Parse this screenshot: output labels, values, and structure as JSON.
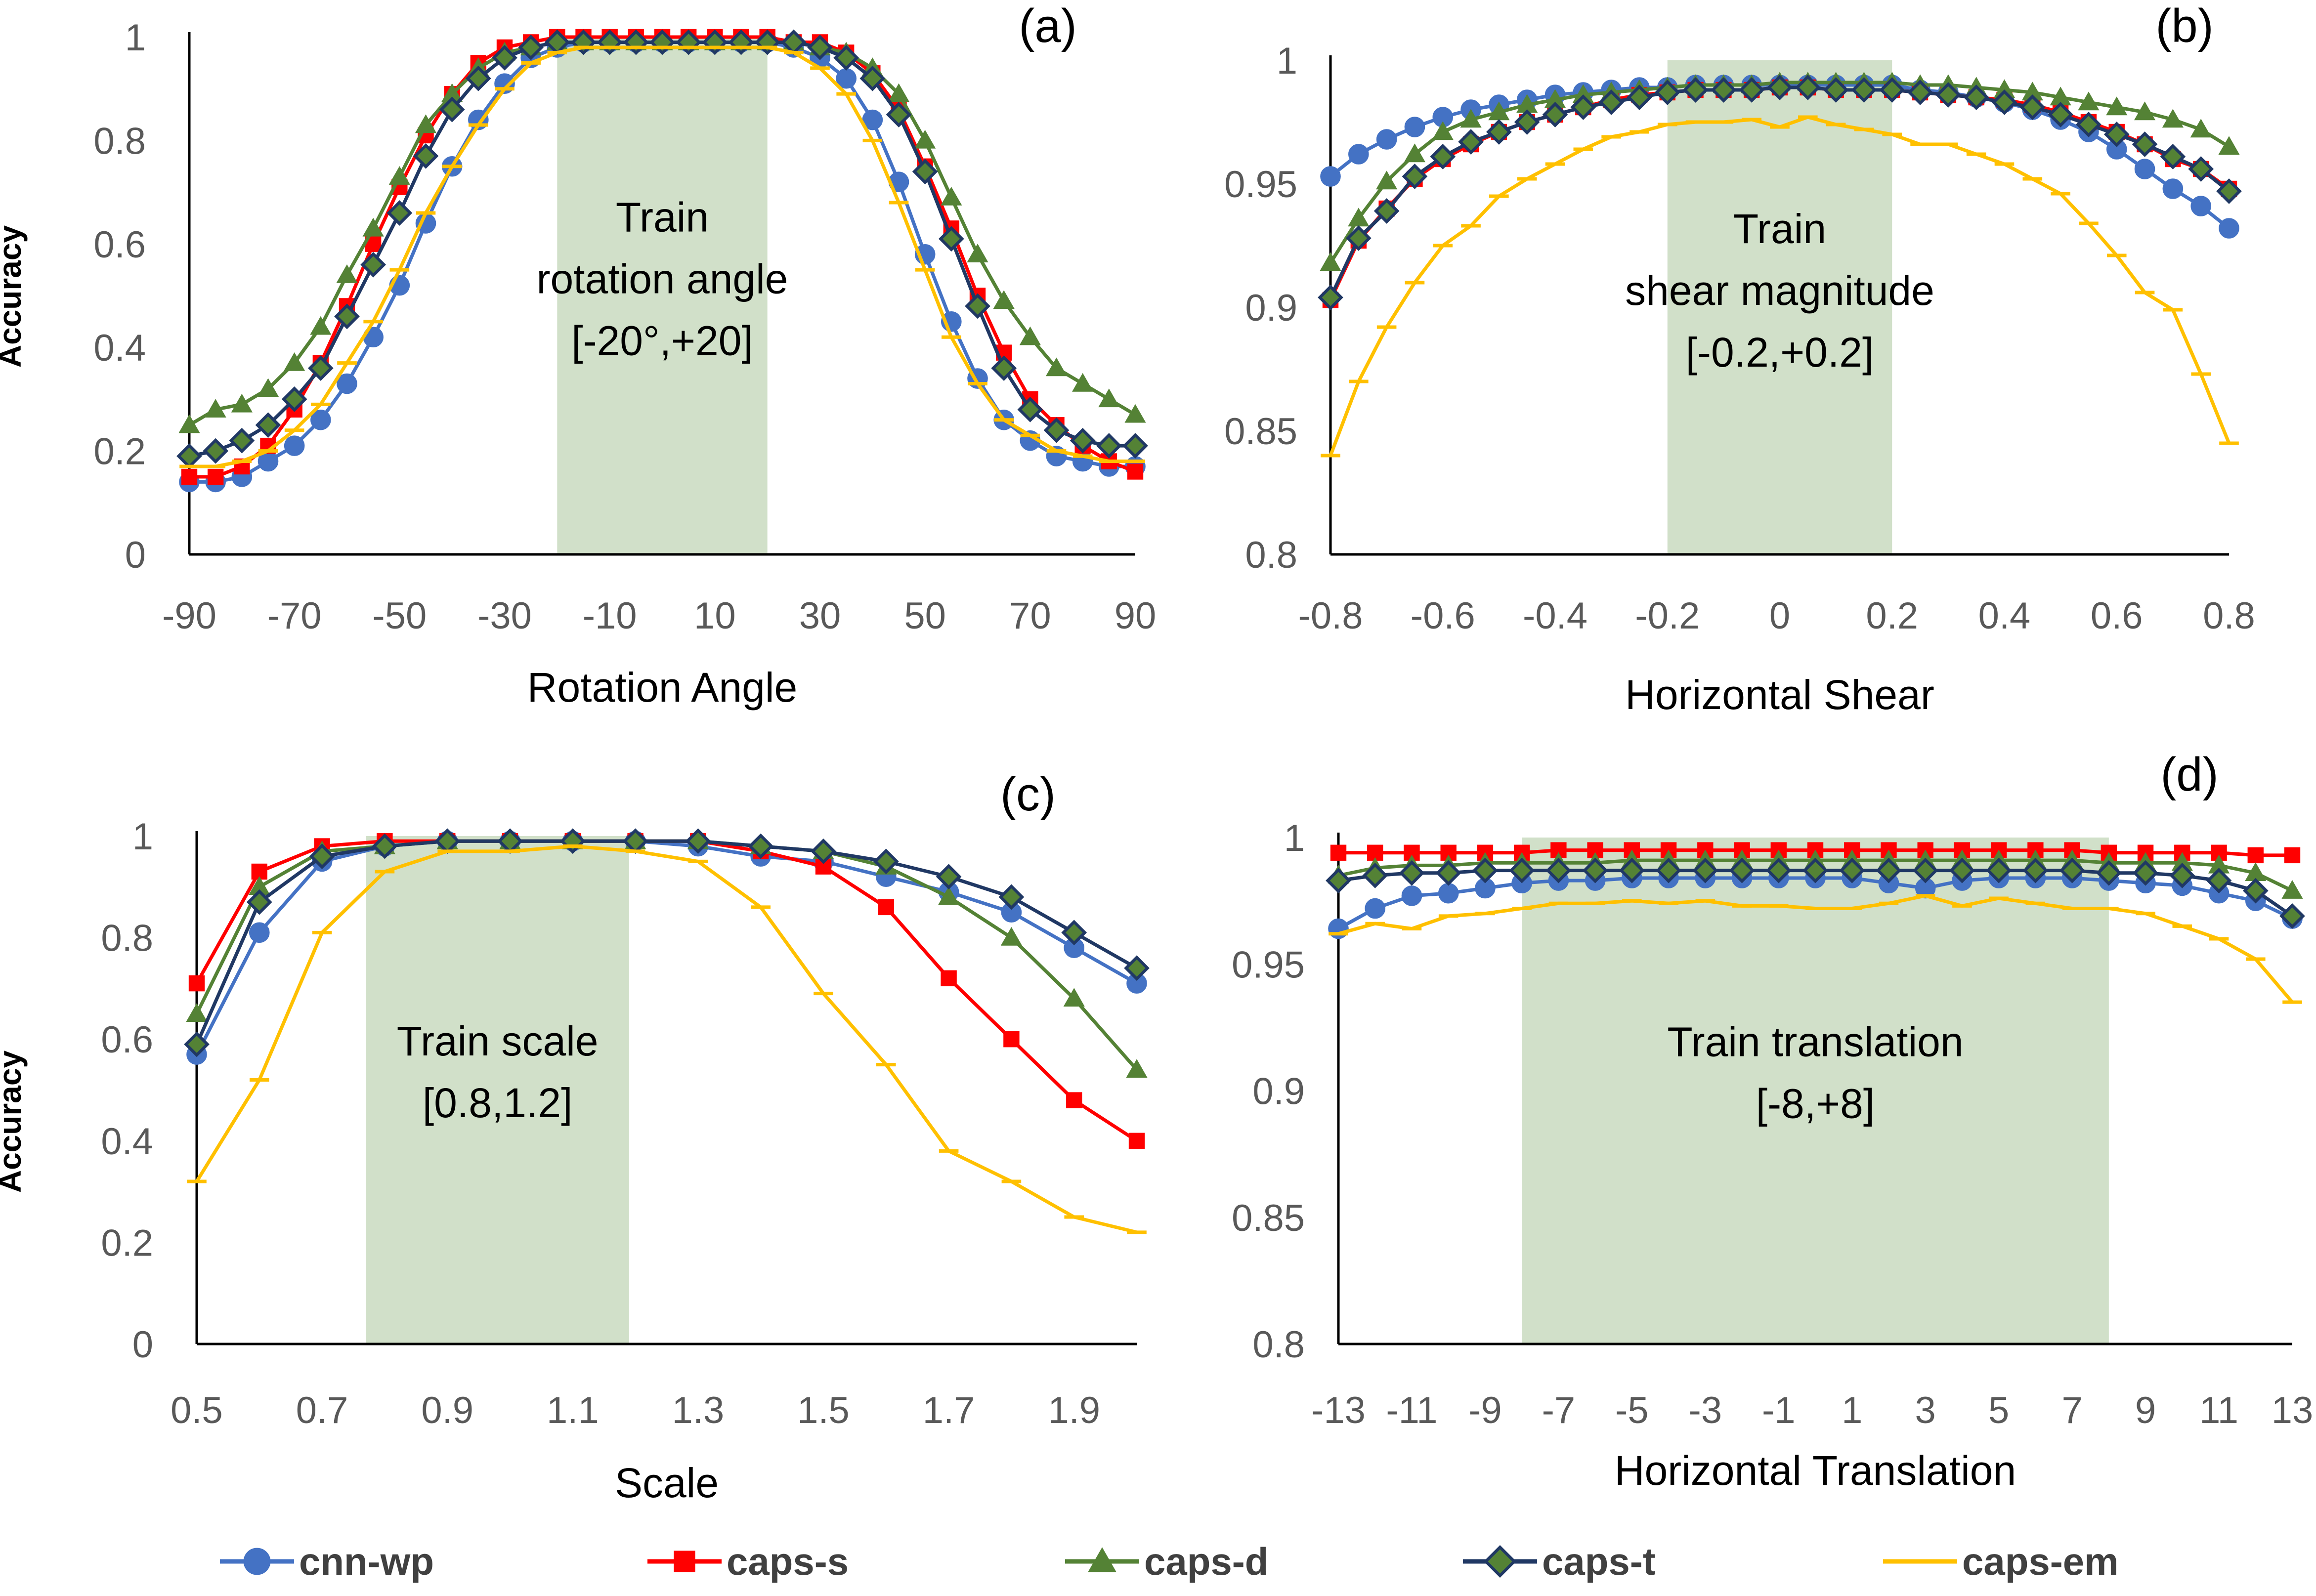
{
  "legend": [
    {
      "name": "cnn-wp",
      "color": "#4472C4",
      "marker": "circle"
    },
    {
      "name": "caps-s",
      "color": "#FF0000",
      "marker": "square"
    },
    {
      "name": "caps-d",
      "color": "#548235",
      "marker": "triangle"
    },
    {
      "name": "caps-t",
      "color": "#203864",
      "marker": "diamond"
    },
    {
      "name": "caps-em",
      "color": "#FFC000",
      "marker": "dash"
    }
  ],
  "chart_data": [
    {
      "panel": "(a)",
      "type": "line",
      "xlabel": "Rotation Angle",
      "ylabel": "Accuracy",
      "xlim": [
        -90,
        90
      ],
      "ylim": [
        0,
        1
      ],
      "xticks": [
        -90,
        -70,
        -50,
        -30,
        -10,
        10,
        30,
        50,
        70,
        90
      ],
      "xtick_labels": [
        "-90",
        "-70",
        "-50",
        "-30",
        "-10",
        "10",
        "30",
        "50",
        "70",
        "90"
      ],
      "yticks": [
        0,
        0.2,
        0.4,
        0.6,
        0.8,
        1
      ],
      "ytick_labels": [
        "0",
        "0.2",
        "0.4",
        "0.6",
        "0.8",
        "1"
      ],
      "train_region": [
        -20,
        20
      ],
      "train_label": [
        "Train",
        "rotation angle",
        "[-20°,+20]"
      ],
      "x": [
        -90,
        -85,
        -80,
        -75,
        -70,
        -65,
        -60,
        -55,
        -50,
        -45,
        -40,
        -35,
        -30,
        -25,
        -20,
        -15,
        -10,
        -5,
        0,
        5,
        10,
        15,
        20,
        25,
        30,
        35,
        40,
        45,
        50,
        55,
        60,
        65,
        70,
        75,
        80,
        85,
        90
      ],
      "series": [
        {
          "name": "cnn-wp",
          "values": [
            0.14,
            0.14,
            0.15,
            0.18,
            0.21,
            0.26,
            0.33,
            0.42,
            0.52,
            0.64,
            0.75,
            0.84,
            0.91,
            0.96,
            0.98,
            0.99,
            0.99,
            0.99,
            0.99,
            0.99,
            0.99,
            0.99,
            0.99,
            0.98,
            0.96,
            0.92,
            0.84,
            0.72,
            0.58,
            0.45,
            0.34,
            0.26,
            0.22,
            0.19,
            0.18,
            0.17,
            0.17
          ]
        },
        {
          "name": "caps-s",
          "values": [
            0.15,
            0.15,
            0.17,
            0.21,
            0.28,
            0.37,
            0.48,
            0.6,
            0.71,
            0.81,
            0.89,
            0.95,
            0.98,
            0.99,
            1.0,
            1.0,
            1.0,
            1.0,
            1.0,
            1.0,
            1.0,
            1.0,
            1.0,
            0.99,
            0.99,
            0.97,
            0.93,
            0.86,
            0.75,
            0.63,
            0.5,
            0.39,
            0.3,
            0.25,
            0.21,
            0.18,
            0.16
          ]
        },
        {
          "name": "caps-d",
          "values": [
            0.25,
            0.28,
            0.29,
            0.32,
            0.37,
            0.44,
            0.54,
            0.63,
            0.73,
            0.83,
            0.89,
            0.94,
            0.97,
            0.98,
            0.99,
            0.99,
            0.99,
            0.99,
            0.99,
            0.99,
            0.99,
            0.99,
            0.99,
            0.99,
            0.98,
            0.97,
            0.94,
            0.89,
            0.8,
            0.69,
            0.58,
            0.49,
            0.42,
            0.36,
            0.33,
            0.3,
            0.27
          ]
        },
        {
          "name": "caps-t",
          "values": [
            0.19,
            0.2,
            0.22,
            0.25,
            0.3,
            0.36,
            0.46,
            0.56,
            0.66,
            0.77,
            0.86,
            0.92,
            0.96,
            0.98,
            0.99,
            0.99,
            0.99,
            0.99,
            0.99,
            0.99,
            0.99,
            0.99,
            0.99,
            0.99,
            0.98,
            0.96,
            0.92,
            0.85,
            0.74,
            0.61,
            0.48,
            0.36,
            0.28,
            0.24,
            0.22,
            0.21,
            0.21
          ]
        },
        {
          "name": "caps-em",
          "values": [
            0.17,
            0.17,
            0.18,
            0.2,
            0.24,
            0.29,
            0.37,
            0.45,
            0.55,
            0.66,
            0.75,
            0.83,
            0.9,
            0.95,
            0.97,
            0.98,
            0.98,
            0.98,
            0.98,
            0.98,
            0.98,
            0.98,
            0.98,
            0.97,
            0.94,
            0.89,
            0.8,
            0.68,
            0.55,
            0.42,
            0.33,
            0.26,
            0.23,
            0.2,
            0.19,
            0.18,
            0.18
          ]
        }
      ]
    },
    {
      "panel": "(b)",
      "type": "line",
      "xlabel": "Horizontal Shear",
      "ylabel": "",
      "xlim": [
        -0.8,
        0.8
      ],
      "ylim": [
        0.8,
        1
      ],
      "xticks": [
        -0.8,
        -0.6,
        -0.4,
        -0.2,
        0,
        0.2,
        0.4,
        0.6,
        0.8
      ],
      "xtick_labels": [
        "-0.8",
        "-0.6",
        "-0.4",
        "-0.2",
        "0",
        "0.2",
        "0.4",
        "0.6",
        "0.8"
      ],
      "yticks": [
        0.8,
        0.85,
        0.9,
        0.95,
        1
      ],
      "ytick_labels": [
        "0.8",
        "0.85",
        "0.9",
        "0.95",
        "1"
      ],
      "train_region": [
        -0.2,
        0.2
      ],
      "train_label": [
        "Train",
        "shear magnitude",
        "[-0.2,+0.2]"
      ],
      "x": [
        -0.8,
        -0.75,
        -0.7,
        -0.65,
        -0.6,
        -0.55,
        -0.5,
        -0.45,
        -0.4,
        -0.35,
        -0.3,
        -0.25,
        -0.2,
        -0.15,
        -0.1,
        -0.05,
        0,
        0.05,
        0.1,
        0.15,
        0.2,
        0.25,
        0.3,
        0.35,
        0.4,
        0.45,
        0.5,
        0.55,
        0.6,
        0.65,
        0.7,
        0.75,
        0.8
      ],
      "series": [
        {
          "name": "cnn-wp",
          "values": [
            0.953,
            0.962,
            0.968,
            0.973,
            0.977,
            0.98,
            0.982,
            0.984,
            0.986,
            0.987,
            0.988,
            0.989,
            0.989,
            0.99,
            0.99,
            0.99,
            0.99,
            0.99,
            0.99,
            0.99,
            0.99,
            0.988,
            0.987,
            0.985,
            0.983,
            0.98,
            0.976,
            0.971,
            0.964,
            0.956,
            0.948,
            0.941,
            0.932
          ]
        },
        {
          "name": "caps-s",
          "values": [
            0.903,
            0.927,
            0.94,
            0.952,
            0.96,
            0.966,
            0.971,
            0.975,
            0.978,
            0.981,
            0.984,
            0.986,
            0.987,
            0.988,
            0.988,
            0.988,
            0.989,
            0.989,
            0.988,
            0.988,
            0.988,
            0.987,
            0.986,
            0.985,
            0.984,
            0.982,
            0.979,
            0.975,
            0.971,
            0.966,
            0.96,
            0.956,
            0.948
          ]
        },
        {
          "name": "caps-d",
          "values": [
            0.918,
            0.936,
            0.951,
            0.962,
            0.971,
            0.976,
            0.979,
            0.982,
            0.984,
            0.986,
            0.987,
            0.988,
            0.989,
            0.99,
            0.99,
            0.99,
            0.991,
            0.991,
            0.991,
            0.991,
            0.991,
            0.99,
            0.99,
            0.989,
            0.988,
            0.987,
            0.985,
            0.983,
            0.981,
            0.979,
            0.976,
            0.972,
            0.965
          ]
        },
        {
          "name": "caps-t",
          "values": [
            0.904,
            0.928,
            0.939,
            0.953,
            0.961,
            0.967,
            0.971,
            0.975,
            0.978,
            0.981,
            0.983,
            0.985,
            0.987,
            0.988,
            0.988,
            0.988,
            0.989,
            0.989,
            0.988,
            0.988,
            0.988,
            0.987,
            0.986,
            0.985,
            0.983,
            0.981,
            0.978,
            0.974,
            0.97,
            0.966,
            0.961,
            0.956,
            0.947
          ]
        },
        {
          "name": "caps-em",
          "values": [
            0.84,
            0.87,
            0.892,
            0.91,
            0.925,
            0.933,
            0.945,
            0.952,
            0.958,
            0.964,
            0.969,
            0.971,
            0.974,
            0.975,
            0.975,
            0.976,
            0.973,
            0.977,
            0.974,
            0.972,
            0.97,
            0.966,
            0.966,
            0.962,
            0.958,
            0.952,
            0.946,
            0.934,
            0.921,
            0.906,
            0.899,
            0.873,
            0.845
          ]
        }
      ]
    },
    {
      "panel": "(c)",
      "type": "line",
      "xlabel": "Scale",
      "ylabel": "Accuracy",
      "xlim": [
        0.5,
        2.0
      ],
      "ylim": [
        0,
        1
      ],
      "xticks": [
        0.5,
        0.7,
        0.9,
        1.1,
        1.3,
        1.5,
        1.7,
        1.9
      ],
      "xtick_labels": [
        "0.5",
        "0.7",
        "0.9",
        "1.1",
        "1.3",
        "1.5",
        "1.7",
        "1.9"
      ],
      "yticks": [
        0,
        0.2,
        0.4,
        0.6,
        0.8,
        1
      ],
      "ytick_labels": [
        "0",
        "0.2",
        "0.4",
        "0.6",
        "0.8",
        "1"
      ],
      "train_region": [
        0.77,
        1.19
      ],
      "train_label": [
        "Train scale",
        "[0.8,1.2]"
      ],
      "x": [
        0.5,
        0.6,
        0.7,
        0.8,
        0.9,
        1.0,
        1.1,
        1.2,
        1.3,
        1.4,
        1.5,
        1.6,
        1.7,
        1.8,
        1.9,
        2.0
      ],
      "series": [
        {
          "name": "cnn-wp",
          "values": [
            0.57,
            0.81,
            0.95,
            0.98,
            0.99,
            0.99,
            0.99,
            0.99,
            0.98,
            0.96,
            0.95,
            0.92,
            0.89,
            0.85,
            0.78,
            0.71
          ]
        },
        {
          "name": "caps-s",
          "values": [
            0.71,
            0.93,
            0.98,
            0.99,
            0.99,
            0.99,
            0.99,
            0.99,
            0.99,
            0.97,
            0.94,
            0.86,
            0.72,
            0.6,
            0.48,
            0.4
          ]
        },
        {
          "name": "caps-d",
          "values": [
            0.65,
            0.9,
            0.97,
            0.98,
            0.99,
            0.99,
            0.99,
            0.99,
            0.99,
            0.98,
            0.97,
            0.94,
            0.88,
            0.8,
            0.68,
            0.54
          ]
        },
        {
          "name": "caps-t",
          "values": [
            0.59,
            0.87,
            0.96,
            0.98,
            0.99,
            0.99,
            0.99,
            0.99,
            0.99,
            0.98,
            0.97,
            0.95,
            0.92,
            0.88,
            0.81,
            0.74
          ]
        },
        {
          "name": "caps-em",
          "values": [
            0.32,
            0.52,
            0.81,
            0.93,
            0.97,
            0.97,
            0.98,
            0.97,
            0.95,
            0.86,
            0.69,
            0.55,
            0.38,
            0.32,
            0.25,
            0.22
          ]
        }
      ]
    },
    {
      "panel": "(d)",
      "type": "line",
      "xlabel": "Horizontal Translation",
      "ylabel": "",
      "xlim": [
        -13,
        13
      ],
      "ylim": [
        0.8,
        1
      ],
      "xticks": [
        -13,
        -11,
        -9,
        -7,
        -5,
        -3,
        -1,
        1,
        3,
        5,
        7,
        9,
        11,
        13
      ],
      "xtick_labels": [
        "-13",
        "-11",
        "-9",
        "-7",
        "-5",
        "-3",
        "-1",
        "1",
        "3",
        "5",
        "7",
        "9",
        "11",
        "13"
      ],
      "yticks": [
        0.8,
        0.85,
        0.9,
        0.95,
        1
      ],
      "ytick_labels": [
        "0.8",
        "0.85",
        "0.9",
        "0.95",
        "1"
      ],
      "train_region": [
        -8,
        8
      ],
      "train_label": [
        "Train translation",
        "[-8,+8]"
      ],
      "x": [
        -13,
        -12,
        -11,
        -10,
        -9,
        -8,
        -7,
        -6,
        -5,
        -4,
        -3,
        -2,
        -1,
        0,
        1,
        2,
        3,
        4,
        5,
        6,
        7,
        8,
        9,
        10,
        11,
        12,
        13
      ],
      "series": [
        {
          "name": "cnn-wp",
          "values": [
            0.964,
            0.972,
            0.977,
            0.978,
            0.98,
            0.982,
            0.983,
            0.983,
            0.984,
            0.984,
            0.984,
            0.984,
            0.984,
            0.984,
            0.984,
            0.982,
            0.98,
            0.983,
            0.984,
            0.984,
            0.984,
            0.983,
            0.982,
            0.981,
            0.978,
            0.975,
            0.968
          ]
        },
        {
          "name": "caps-s",
          "values": [
            0.994,
            0.994,
            0.994,
            0.994,
            0.994,
            0.994,
            0.995,
            0.995,
            0.995,
            0.995,
            0.995,
            0.995,
            0.995,
            0.995,
            0.995,
            0.995,
            0.995,
            0.995,
            0.995,
            0.995,
            0.995,
            0.994,
            0.994,
            0.994,
            0.994,
            0.993,
            0.993
          ]
        },
        {
          "name": "caps-d",
          "values": [
            0.985,
            0.988,
            0.989,
            0.989,
            0.99,
            0.99,
            0.99,
            0.99,
            0.991,
            0.991,
            0.991,
            0.991,
            0.991,
            0.991,
            0.991,
            0.991,
            0.991,
            0.991,
            0.991,
            0.991,
            0.991,
            0.99,
            0.99,
            0.99,
            0.989,
            0.986,
            0.979
          ]
        },
        {
          "name": "caps-t",
          "values": [
            0.983,
            0.985,
            0.986,
            0.986,
            0.987,
            0.987,
            0.987,
            0.987,
            0.987,
            0.987,
            0.987,
            0.987,
            0.987,
            0.987,
            0.987,
            0.987,
            0.987,
            0.987,
            0.987,
            0.987,
            0.987,
            0.986,
            0.986,
            0.985,
            0.983,
            0.979,
            0.969
          ]
        },
        {
          "name": "caps-em",
          "values": [
            0.962,
            0.966,
            0.964,
            0.969,
            0.97,
            0.972,
            0.974,
            0.974,
            0.975,
            0.974,
            0.975,
            0.973,
            0.973,
            0.972,
            0.972,
            0.974,
            0.977,
            0.973,
            0.976,
            0.974,
            0.972,
            0.972,
            0.97,
            0.965,
            0.96,
            0.952,
            0.935
          ]
        }
      ]
    }
  ]
}
